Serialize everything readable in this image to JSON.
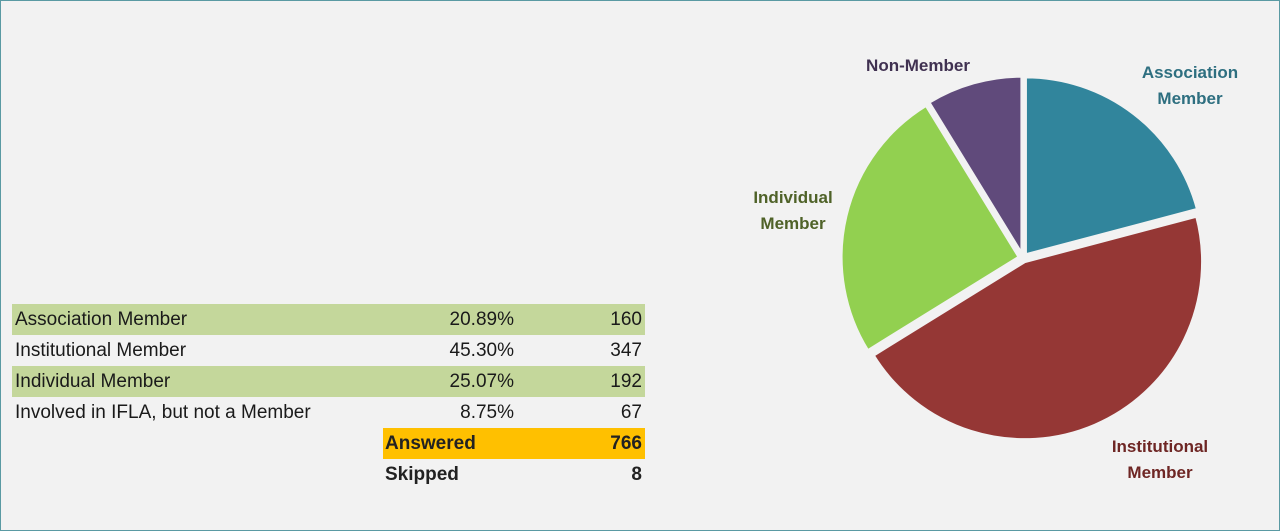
{
  "table": {
    "rows": [
      {
        "label": "Association Member",
        "percent": "20.89%",
        "count": "160"
      },
      {
        "label": "Institutional Member",
        "percent": "45.30%",
        "count": "347"
      },
      {
        "label": "Individual Member",
        "percent": "25.07%",
        "count": "192"
      },
      {
        "label": "Involved in IFLA, but not a Member",
        "percent": "8.75%",
        "count": "67"
      }
    ],
    "answered": {
      "label": "Answered",
      "count": "766"
    },
    "skipped": {
      "label": "Skipped",
      "count": "8"
    }
  },
  "chart_data": {
    "type": "pie",
    "series": [
      {
        "label_lines": [
          "Association",
          "Member"
        ],
        "value": 20.89,
        "color": "#31859c",
        "label_color": "#2e6f80"
      },
      {
        "label_lines": [
          "Institutional",
          "Member"
        ],
        "value": 45.3,
        "color": "#953735",
        "label_color": "#6e2624"
      },
      {
        "label_lines": [
          "Individual",
          "Member"
        ],
        "value": 25.07,
        "color": "#92d050",
        "label_color": "#4f6228"
      },
      {
        "label_lines": [
          "Non-Member"
        ],
        "value": 8.75,
        "color": "#604a7b",
        "label_color": "#403151"
      }
    ]
  },
  "colors": {
    "row_highlight": "#c4d79b",
    "answered_highlight": "#ffc000",
    "background": "#f2f2f2"
  }
}
